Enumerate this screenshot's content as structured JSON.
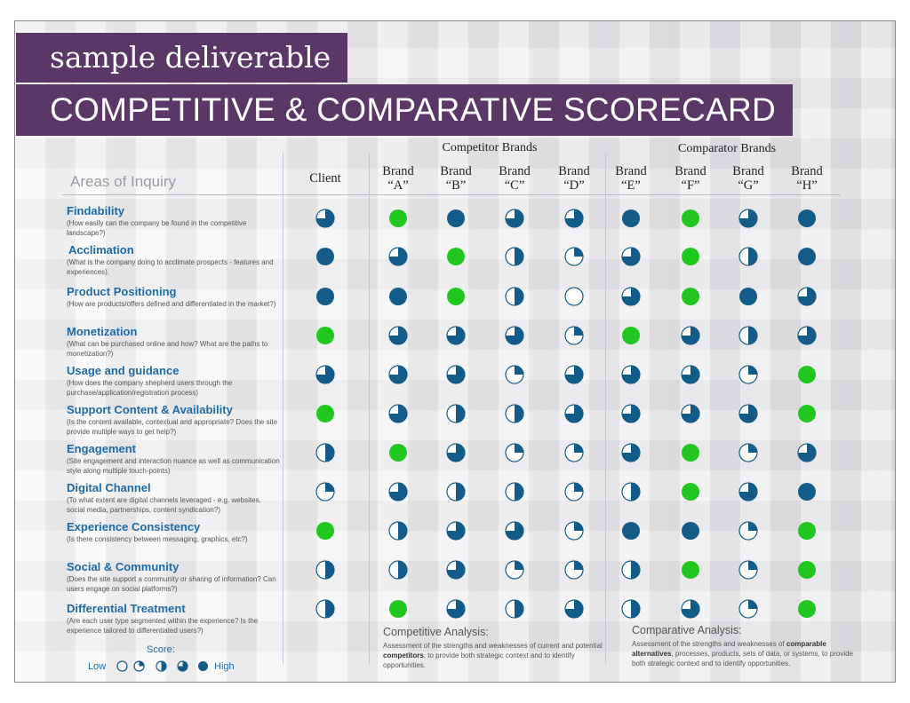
{
  "header": {
    "subtitle": "sample deliverable",
    "title": "COMPETITIVE & COMPARATIVE SCORECARD"
  },
  "groups": {
    "competitor": "Competitor Brands",
    "comparator": "Comparator Brands"
  },
  "areas_title": "Areas of Inquiry",
  "columns": [
    {
      "line1": "Client",
      "line2": ""
    },
    {
      "line1": "Brand",
      "line2": "“A”"
    },
    {
      "line1": "Brand",
      "line2": "“B”"
    },
    {
      "line1": "Brand",
      "line2": "“C”"
    },
    {
      "line1": "Brand",
      "line2": "“D”"
    },
    {
      "line1": "Brand",
      "line2": "“E”"
    },
    {
      "line1": "Brand",
      "line2": "“F”"
    },
    {
      "line1": "Brand",
      "line2": "“G”"
    },
    {
      "line1": "Brand",
      "line2": "“H”"
    }
  ],
  "rows": [
    {
      "title": "Findability",
      "desc": "(How easily can the company be found in the competitive landscape?)",
      "scores": [
        "3",
        "G",
        "4",
        "3",
        "3",
        "4",
        "G",
        "3",
        "4"
      ]
    },
    {
      "title": "Acclimation",
      "desc": "(What is the company doing to acclimate prospects - features and experiences).",
      "scores": [
        "4",
        "3",
        "G",
        "2",
        "1",
        "3",
        "G",
        "2",
        "4"
      ]
    },
    {
      "title": "Product Positioning",
      "desc": "(How are products/offers defined and differentiated in the market?)",
      "scores": [
        "4",
        "4",
        "G",
        "2",
        "0",
        "3",
        "G",
        "4",
        "3"
      ]
    },
    {
      "title": "Monetization",
      "desc": "(What can be purchased online and how? What are the paths to monetization?)",
      "scores": [
        "G",
        "3",
        "3",
        "3",
        "1",
        "G",
        "3",
        "2",
        "3"
      ]
    },
    {
      "title": "Usage and guidance",
      "desc": "(How does the company shepherd users through the purchase/application/registration process)",
      "scores": [
        "3",
        "3",
        "3",
        "1",
        "3",
        "3",
        "3",
        "1",
        "G"
      ]
    },
    {
      "title": "Support Content & Availability",
      "desc": "(Is the content available, contextual and appropriate? Does the site provide multiple ways to get help?)",
      "scores": [
        "G",
        "3",
        "2",
        "2",
        "3",
        "3",
        "3",
        "3",
        "G"
      ]
    },
    {
      "title": "Engagement",
      "desc": "(Site engagement and interaction nuance as well as communication style along multiple touch-points)",
      "scores": [
        "2",
        "G",
        "3",
        "1",
        "1",
        "3",
        "G",
        "1",
        "3"
      ]
    },
    {
      "title": "Digital Channel",
      "desc": "(To what extent are digital channels leveraged - e.g. websites, social media, partnerships, content syndication?)",
      "scores": [
        "1",
        "3",
        "2",
        "2",
        "1",
        "2",
        "G",
        "3",
        "4"
      ]
    },
    {
      "title": "Experience Consistency",
      "desc": "(Is there consistency between messaging, graphics, etc?)",
      "scores": [
        "G",
        "2",
        "3",
        "3",
        "1",
        "4",
        "4",
        "1",
        "G"
      ]
    },
    {
      "title": "Social & Community",
      "desc": "(Does the site support a community or sharing of information? Can users engage on social platforms?)",
      "scores": [
        "2",
        "2",
        "3",
        "1",
        "1",
        "2",
        "G",
        "1",
        "G"
      ]
    },
    {
      "title": "Differential Treatment",
      "desc": "(Are each user type segmented within the experience? Is the experience tailored to differentiated users?)",
      "scores": [
        "2",
        "G",
        "3",
        "2",
        "3",
        "2",
        "3",
        "1",
        "G"
      ]
    }
  ],
  "competitive": {
    "title": "Competitive Analysis:",
    "t1": "Assessment of the strengths and weaknesses of current and potential ",
    "bold": "competitors",
    "t2": ", to provide both strategic context and to identify opportunities."
  },
  "comparative": {
    "title": "Comparative Analysis:",
    "t1": "Assessment of the strengths and weaknesses of ",
    "bold": "comparable alternatives",
    "t2": ", processes, products, sets of data, or systems, to provide both strategic context and to identify opportunities."
  },
  "legend": {
    "score": "Score:",
    "low": "Low",
    "high": "High",
    "levels": [
      "0",
      "1",
      "2",
      "3",
      "4"
    ]
  },
  "colors": {
    "purple": "#5b3768",
    "blue": "#135c89",
    "green": "#1fc71f",
    "link": "#1f6aa5"
  }
}
